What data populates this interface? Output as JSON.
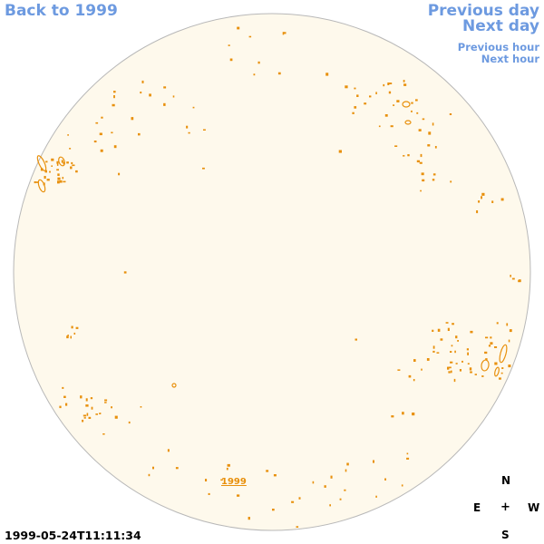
{
  "nav": {
    "back_label": "Back to 1999",
    "prev_day_label": "Previous day",
    "next_day_label": "Next day",
    "prev_hour_label": "Previous hour",
    "next_hour_label": "Next hour"
  },
  "disk": {
    "year_label": "1999",
    "fill_color": "#fef9ec",
    "limb_color": "#b8b8b8",
    "feature_color": "#e8900c"
  },
  "compass": {
    "north": "N",
    "south": "S",
    "east": "E",
    "west": "W",
    "center": "+"
  },
  "timestamp": "1999-05-24T11:11:34"
}
